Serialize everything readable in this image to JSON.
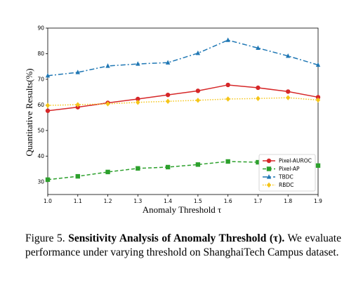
{
  "chart_data": {
    "type": "line",
    "xlabel": "Anomaly Threshold τ",
    "ylabel": "Quantitative Results(%)",
    "x": [
      1.0,
      1.1,
      1.2,
      1.3,
      1.4,
      1.5,
      1.6,
      1.7,
      1.8,
      1.9
    ],
    "x_tick_labels": [
      "1.0",
      "1.1",
      "1.2",
      "1.3",
      "1.4",
      "1.5",
      "1.6",
      "1.7",
      "1.8",
      "1.9"
    ],
    "y_ticks": [
      30,
      40,
      50,
      60,
      70,
      80,
      90
    ],
    "xlim": [
      1.0,
      1.9
    ],
    "ylim": [
      25,
      90
    ],
    "grid": false,
    "legend_position": "bottom-right",
    "series": [
      {
        "name": "Pixel-AUROC",
        "color": "#d62728",
        "marker": "circle",
        "dash": "solid",
        "values": [
          57.7,
          59.1,
          60.8,
          62.3,
          63.9,
          65.5,
          67.8,
          66.7,
          65.2,
          63.0
        ]
      },
      {
        "name": "Pixel-AP",
        "color": "#2ca02c",
        "marker": "square",
        "dash": "dashed",
        "values": [
          30.8,
          32.1,
          33.8,
          35.2,
          35.7,
          36.7,
          37.9,
          37.6,
          36.9,
          36.3
        ]
      },
      {
        "name": "TBDC",
        "color": "#1f77b4",
        "marker": "triangle",
        "dash": "dashdot",
        "values": [
          71.4,
          72.7,
          75.2,
          76.0,
          76.5,
          80.2,
          85.3,
          82.2,
          79.1,
          75.6
        ]
      },
      {
        "name": "RBDC",
        "color": "#f5c518",
        "marker": "diamond",
        "dash": "dotted",
        "values": [
          59.8,
          60.1,
          60.4,
          61.0,
          61.4,
          61.8,
          62.3,
          62.5,
          62.8,
          61.9
        ]
      }
    ]
  },
  "caption": {
    "label": "Figure 5.",
    "title": "Sensitivity Analysis of Anomaly Threshold (τ).",
    "body": "We evaluate performance under varying threshold on ShanghaiTech Campus dataset."
  }
}
